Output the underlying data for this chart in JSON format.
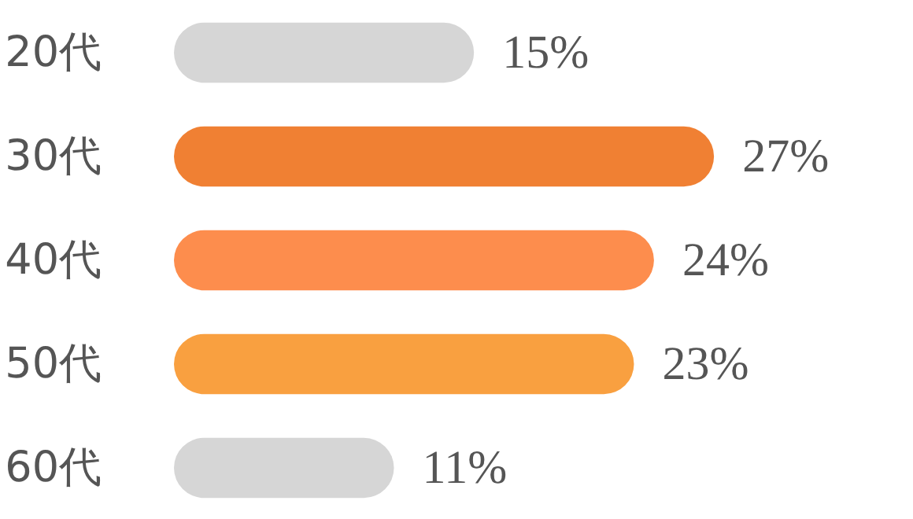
{
  "chart_data": {
    "type": "bar",
    "orientation": "horizontal",
    "categories": [
      "20代",
      "30代",
      "40代",
      "50代",
      "60代"
    ],
    "values": [
      15,
      27,
      24,
      23,
      11
    ],
    "value_labels": [
      "15%",
      "27%",
      "24%",
      "23%",
      "11%"
    ],
    "colors": [
      "#d6d6d6",
      "#f08033",
      "#fd8d4d",
      "#f9a040",
      "#d6d6d6"
    ],
    "grid": false
  }
}
